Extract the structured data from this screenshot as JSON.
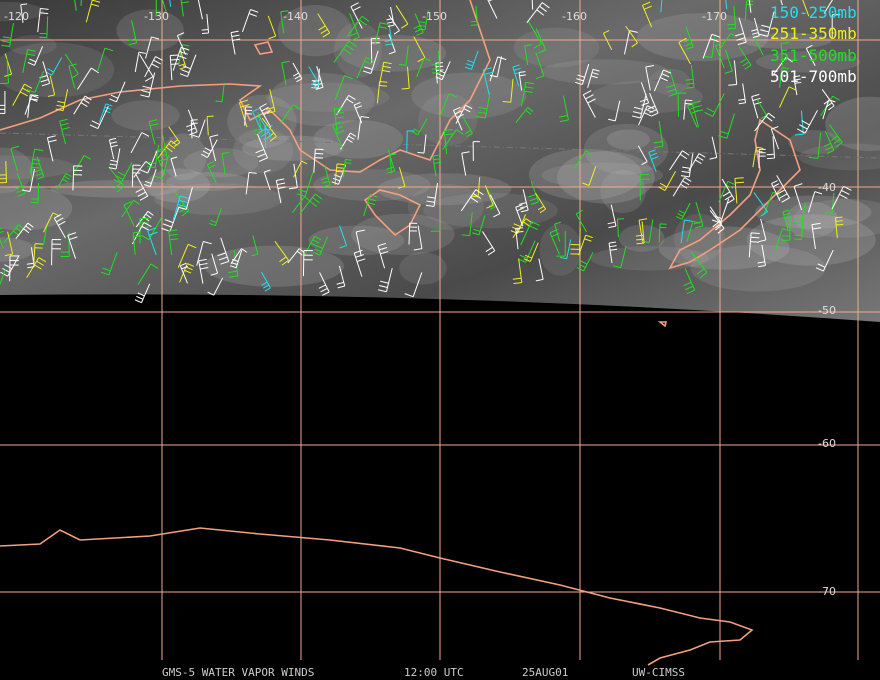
{
  "map": {
    "longitude_labels": [
      -120,
      -130,
      -140,
      -150,
      -160,
      -170
    ],
    "latitude_labels": [
      -40,
      -50,
      -60,
      -70
    ],
    "legend": [
      "150-250mb",
      "251-350mb",
      "351-500mb",
      "501-700mb"
    ],
    "footer": [
      "GMS-5 WATER VAPOR WINDS",
      "12:00 UTC",
      "25AUG01",
      "UW-CIMSS"
    ]
  }
}
